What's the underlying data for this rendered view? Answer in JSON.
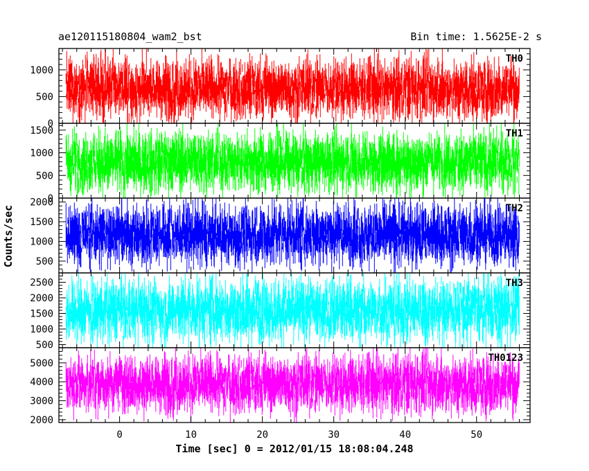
{
  "header": {
    "title": "ae120115180804_wam2_bst",
    "bin_time": "Bin time: 1.5625E-2 s"
  },
  "chart_data": {
    "type": "line",
    "title": "ae120115180804_wam2_bst",
    "subtitle": "Bin time: 1.5625E-2 s",
    "xlabel": "Time [sec] 0 = 2012/01/15 18:08:04.248",
    "ylabel": "Counts/sec",
    "xlim": [
      -8.5,
      57.5
    ],
    "x_data_range": [
      -7.5,
      56
    ],
    "x_ticks": [
      0,
      10,
      20,
      30,
      40,
      50
    ],
    "grid": false,
    "panels": [
      {
        "name": "TH0",
        "color": "#ff0000",
        "ylim": [
          0,
          1400
        ],
        "y_ticks": [
          0,
          500,
          1000
        ],
        "typical_range": [
          100,
          1200
        ],
        "mean": 600
      },
      {
        "name": "TH1",
        "color": "#00ff00",
        "ylim": [
          0,
          1650
        ],
        "y_ticks": [
          0,
          500,
          1000,
          1500
        ],
        "typical_range": [
          150,
          1450
        ],
        "mean": 750
      },
      {
        "name": "TH2",
        "color": "#0000ff",
        "ylim": [
          200,
          2100
        ],
        "y_ticks": [
          500,
          1000,
          1500,
          2000
        ],
        "typical_range": [
          400,
          1950
        ],
        "mean": 1100
      },
      {
        "name": "TH3",
        "color": "#00ffff",
        "ylim": [
          400,
          2800
        ],
        "y_ticks": [
          500,
          1000,
          1500,
          2000,
          2500
        ],
        "typical_range": [
          600,
          2600
        ],
        "mean": 1500
      },
      {
        "name": "TH0123",
        "color": "#ff00ff",
        "ylim": [
          1850,
          5800
        ],
        "y_ticks": [
          2000,
          3000,
          4000,
          5000
        ],
        "typical_range": [
          2400,
          5400
        ],
        "mean": 3900
      }
    ]
  }
}
